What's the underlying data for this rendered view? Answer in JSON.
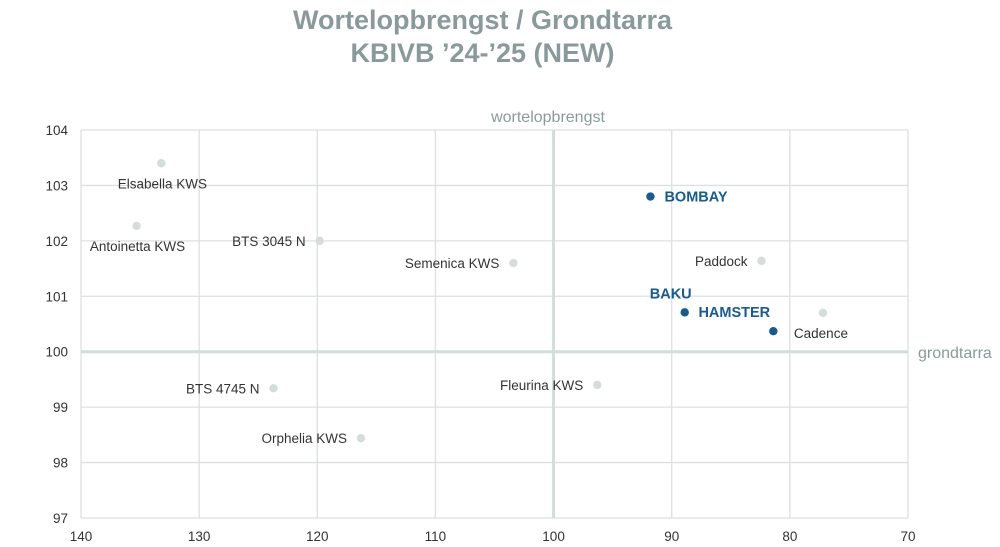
{
  "title": {
    "line1": "Wortelopbrengst / Grondtarra",
    "line2": "KBIVB ’24-’25 (NEW)"
  },
  "colors": {
    "title": "#8a9a9a",
    "grid": "#dde0e0",
    "center_axis": "#d3dddc",
    "point_default": "#d5dcdb",
    "point_highlight": "#1a5a8c",
    "label_default": "#333333"
  },
  "chart_data": {
    "type": "scatter",
    "title": "Wortelopbrengst / Grondtarra KBIVB ’24-’25 (NEW)",
    "xlabel": "grondtarra",
    "ylabel": "wortelopbrengst",
    "xlim": [
      140,
      70
    ],
    "ylim": [
      97,
      104
    ],
    "x_reversed": true,
    "x_ticks": [
      140,
      130,
      120,
      110,
      100,
      90,
      80,
      70
    ],
    "y_ticks": [
      97,
      98,
      99,
      100,
      101,
      102,
      103,
      104
    ],
    "x_ticks_text": [
      "140",
      "130",
      "120",
      "110",
      "100",
      "90",
      "80",
      "70"
    ],
    "y_ticks_text": [
      "97",
      "98",
      "99",
      "100",
      "101",
      "102",
      "103",
      "104"
    ],
    "grid": true,
    "quadrant_center": {
      "x": 100,
      "y": 100
    },
    "legend": null,
    "points": [
      {
        "name": "Elsabella KWS",
        "x": 133.2,
        "y": 103.4,
        "highlight": false,
        "label_pos": "below"
      },
      {
        "name": "Antoinetta KWS",
        "x": 135.3,
        "y": 102.27,
        "highlight": false,
        "label_pos": "below"
      },
      {
        "name": "BTS 3045 N",
        "x": 119.8,
        "y": 102.0,
        "highlight": false,
        "label_pos": "left"
      },
      {
        "name": "Semenica KWS",
        "x": 103.4,
        "y": 101.6,
        "highlight": false,
        "label_pos": "left"
      },
      {
        "name": "BOMBAY",
        "x": 91.8,
        "y": 102.8,
        "highlight": true,
        "label_pos": "right"
      },
      {
        "name": "Paddock",
        "x": 82.4,
        "y": 101.64,
        "highlight": false,
        "label_pos": "left"
      },
      {
        "name": "BAKU",
        "x": 88.9,
        "y": 100.71,
        "highlight": true,
        "label_pos": "above"
      },
      {
        "name": "HAMSTER",
        "x": 81.4,
        "y": 100.37,
        "highlight": true,
        "label_pos": "above-left"
      },
      {
        "name": "Cadence",
        "x": 77.2,
        "y": 100.7,
        "highlight": false,
        "label_pos": "below"
      },
      {
        "name": "BTS 4745 N",
        "x": 123.7,
        "y": 99.34,
        "highlight": false,
        "label_pos": "left"
      },
      {
        "name": "Orphelia KWS",
        "x": 116.3,
        "y": 98.44,
        "highlight": false,
        "label_pos": "left"
      },
      {
        "name": "Fleurina KWS",
        "x": 96.3,
        "y": 99.4,
        "highlight": false,
        "label_pos": "left"
      }
    ]
  }
}
